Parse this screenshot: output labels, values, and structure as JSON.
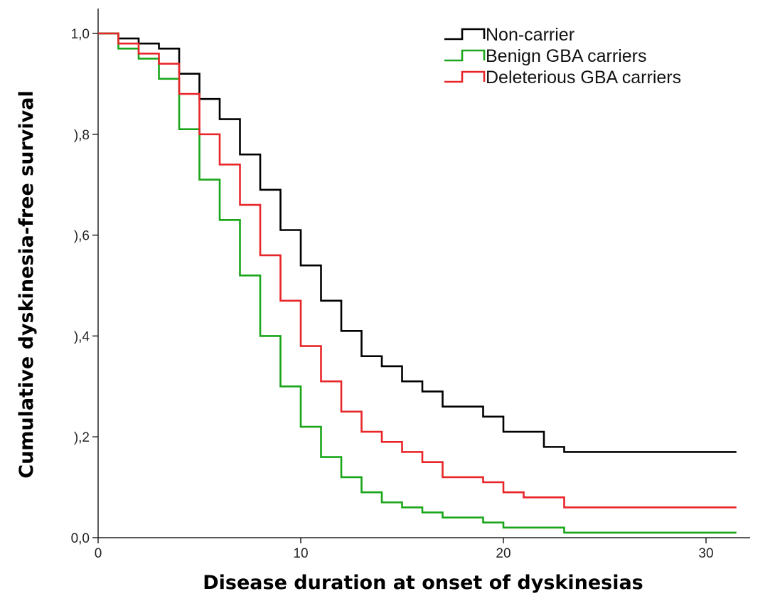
{
  "chart_data": {
    "type": "line",
    "step": true,
    "xlabel": "Disease duration at onset of dyskinesias",
    "ylabel": "Cumulative dyskinesia-free survival",
    "xlim": [
      0,
      32
    ],
    "ylim": [
      0,
      1.0
    ],
    "x_ticks": [
      0,
      10,
      20,
      30
    ],
    "x_tick_labels": [
      "0",
      "10",
      "20",
      "30"
    ],
    "y_ticks": [
      0,
      0.2,
      0.4,
      0.6,
      0.8,
      1.0
    ],
    "y_tick_labels": [
      "0,0",
      "),2",
      "),4",
      "),6",
      "),8",
      "1,0"
    ],
    "grid": false,
    "legend": "top-right",
    "series": [
      {
        "name": "Non-carrier",
        "color": "#000000",
        "x": [
          0,
          1,
          2,
          3,
          4,
          5,
          6,
          7,
          8,
          9,
          10,
          11,
          12,
          13,
          14,
          15,
          16,
          17,
          18,
          19,
          20,
          21,
          22,
          23,
          31.5
        ],
        "y": [
          1.0,
          0.99,
          0.98,
          0.97,
          0.92,
          0.87,
          0.83,
          0.76,
          0.69,
          0.61,
          0.54,
          0.47,
          0.41,
          0.36,
          0.34,
          0.31,
          0.29,
          0.26,
          0.26,
          0.24,
          0.21,
          0.21,
          0.18,
          0.17,
          0.17
        ]
      },
      {
        "name": "Benign GBA carriers",
        "color": "#1aa51a",
        "x": [
          0,
          1,
          2,
          3,
          4,
          5,
          6,
          7,
          8,
          9,
          10,
          11,
          12,
          13,
          14,
          15,
          16,
          17,
          18,
          19,
          20,
          21,
          22,
          23,
          31.5
        ],
        "y": [
          1.0,
          0.97,
          0.95,
          0.91,
          0.81,
          0.71,
          0.63,
          0.52,
          0.4,
          0.3,
          0.22,
          0.16,
          0.12,
          0.09,
          0.07,
          0.06,
          0.05,
          0.04,
          0.04,
          0.03,
          0.02,
          0.02,
          0.02,
          0.01,
          0.01
        ]
      },
      {
        "name": "Deleterious GBA carriers",
        "color": "#e8262a",
        "x": [
          0,
          1,
          2,
          3,
          4,
          5,
          6,
          7,
          8,
          9,
          10,
          11,
          12,
          13,
          14,
          15,
          16,
          17,
          18,
          19,
          20,
          21,
          22,
          23,
          31.5
        ],
        "y": [
          1.0,
          0.98,
          0.96,
          0.94,
          0.88,
          0.8,
          0.74,
          0.66,
          0.56,
          0.47,
          0.38,
          0.31,
          0.25,
          0.21,
          0.19,
          0.17,
          0.15,
          0.12,
          0.12,
          0.11,
          0.09,
          0.08,
          0.08,
          0.06,
          0.06
        ]
      }
    ]
  }
}
